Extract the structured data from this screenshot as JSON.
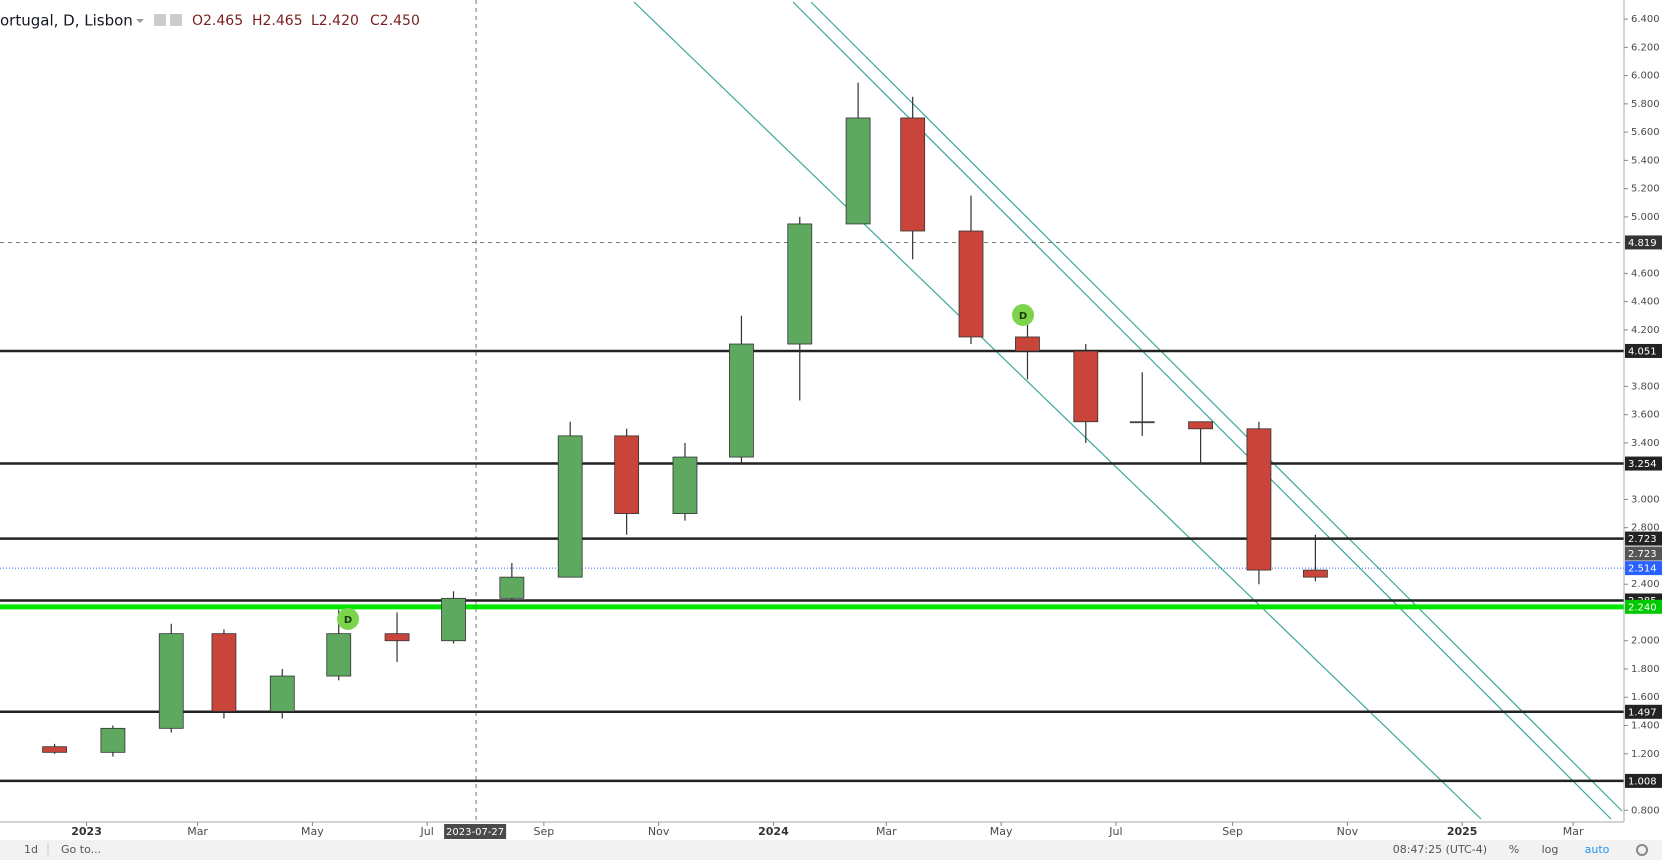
{
  "header": {
    "symbol": "ortugal, D, Lisbon",
    "ohlc": [
      "O2.465",
      "H2.465",
      "L2.420",
      "C2.450"
    ]
  },
  "dividends": [
    "D",
    "D"
  ],
  "toolbar": {
    "left": [
      "1d",
      "Go to..."
    ],
    "right": [
      "08:47:25 (UTC-4)",
      "%",
      "log",
      "auto"
    ]
  },
  "chart_data": {
    "type": "candlestick",
    "x": [
      "2022-12",
      "2023-01",
      "2023-02",
      "2023-03",
      "2023-04",
      "2023-05",
      "2023-06",
      "2023-07",
      "2023-08",
      "2023-09",
      "2023-10",
      "2023-11",
      "2023-12",
      "2024-01",
      "2024-02",
      "2024-03",
      "2024-04",
      "2024-05",
      "2024-06",
      "2024-07",
      "2024-08",
      "2024-09",
      "2024-10"
    ],
    "open": [
      1.25,
      1.21,
      1.38,
      2.05,
      1.5,
      1.75,
      2.05,
      2.0,
      2.3,
      2.45,
      3.45,
      2.9,
      3.3,
      4.1,
      4.95,
      5.7,
      4.9,
      4.15,
      4.05,
      3.55,
      3.55,
      3.5,
      2.5
    ],
    "high": [
      1.27,
      1.4,
      2.12,
      2.08,
      1.8,
      2.22,
      2.2,
      2.35,
      2.55,
      3.55,
      3.5,
      3.4,
      4.3,
      5.0,
      5.95,
      5.85,
      5.15,
      4.25,
      4.1,
      3.9,
      3.55,
      3.55,
      2.75
    ],
    "low": [
      1.2,
      1.18,
      1.35,
      1.45,
      1.45,
      1.72,
      1.85,
      1.98,
      2.28,
      2.45,
      2.75,
      2.85,
      3.25,
      3.7,
      4.95,
      4.7,
      4.1,
      3.85,
      3.4,
      3.45,
      3.25,
      2.4,
      2.42
    ],
    "close": [
      1.21,
      1.38,
      2.05,
      1.5,
      1.75,
      2.05,
      2.0,
      2.3,
      2.45,
      3.45,
      2.9,
      3.3,
      4.1,
      4.95,
      5.7,
      4.9,
      4.15,
      4.05,
      3.55,
      3.55,
      3.5,
      2.5,
      2.45
    ],
    "colors": {
      "up": "#5ea85f",
      "down": "#c9443a",
      "wick": "#333333"
    },
    "xlim": [
      "2022-11-16",
      "2025-03-28"
    ],
    "xticks": [
      {
        "value": "2023-01",
        "label": "2023"
      },
      {
        "value": "2023-03",
        "label": "Mar"
      },
      {
        "value": "2023-05",
        "label": "May"
      },
      {
        "value": "2023-07",
        "label": "Jul"
      },
      {
        "value": "2023-09",
        "label": "Sep"
      },
      {
        "value": "2023-11",
        "label": "Nov"
      },
      {
        "value": "2024-01",
        "label": "2024"
      },
      {
        "value": "2024-03",
        "label": "Mar"
      },
      {
        "value": "2024-05",
        "label": "May"
      },
      {
        "value": "2024-07",
        "label": "Jul"
      },
      {
        "value": "2024-09",
        "label": "Sep"
      },
      {
        "value": "2024-11",
        "label": "Nov"
      },
      {
        "value": "2025-01",
        "label": "2025"
      },
      {
        "value": "2025-03",
        "label": "Mar"
      }
    ],
    "ylim": [
      0.717,
      6.535
    ],
    "yticks": [
      {
        "value": 0.8,
        "label": "0.800"
      },
      {
        "value": 1.2,
        "label": "1.200"
      },
      {
        "value": 1.4,
        "label": "1.400"
      },
      {
        "value": 1.6,
        "label": "1.600"
      },
      {
        "value": 1.8,
        "label": "1.800"
      },
      {
        "value": 2,
        "label": "2.000"
      },
      {
        "value": 2.4,
        "label": "2.400"
      },
      {
        "value": 2.8,
        "label": "2.800"
      },
      {
        "value": 3,
        "label": "3.000"
      },
      {
        "value": 3.4,
        "label": "3.400"
      },
      {
        "value": 3.6,
        "label": "3.600"
      },
      {
        "value": 3.8,
        "label": "3.800"
      },
      {
        "value": 4.2,
        "label": "4.200"
      },
      {
        "value": 4.4,
        "label": "4.400"
      },
      {
        "value": 4.6,
        "label": "4.600"
      },
      {
        "value": 5,
        "label": "5.000"
      },
      {
        "value": 5.2,
        "label": "5.200"
      },
      {
        "value": 5.4,
        "label": "5.400"
      },
      {
        "value": 5.6,
        "label": "5.600"
      },
      {
        "value": 5.8,
        "label": "5.800"
      },
      {
        "value": 6,
        "label": "6.000"
      },
      {
        "value": 6.2,
        "label": "6.200"
      },
      {
        "value": 6.4,
        "label": "6.400"
      }
    ],
    "grid": false,
    "levels": [
      {
        "value": 4.051,
        "label": "4.051",
        "color": "#222222",
        "width": 2.5,
        "line": true,
        "badge": "#222222"
      },
      {
        "value": 3.254,
        "label": "3.254",
        "color": "#222222",
        "width": 2.5,
        "line": true,
        "badge": "#222222"
      },
      {
        "value": 2.723,
        "label": "2.723",
        "color": "#222222",
        "width": 2.5,
        "line": true,
        "badge": "#222222"
      },
      {
        "value": 2.723,
        "label": "2.723",
        "color": "#555555",
        "width": 0,
        "line": false,
        "badge": "#555555"
      },
      {
        "value": 2.514,
        "label": "2.514",
        "color": "#2962ff",
        "width": 1,
        "line": true,
        "dash": "1 2",
        "badge": "#2962ff"
      },
      {
        "value": 2.285,
        "label": "2.285",
        "color": "#222222",
        "width": 2.5,
        "line": true,
        "badge": "#222222"
      },
      {
        "value": 2.24,
        "label": "2.240",
        "color": "#00e600",
        "width": 5,
        "line": true,
        "badge": "#00c800"
      },
      {
        "value": 1.497,
        "label": "1.497",
        "color": "#222222",
        "width": 2.5,
        "line": true,
        "badge": "#222222"
      },
      {
        "value": 1.008,
        "label": "1.008",
        "color": "#222222",
        "width": 2.5,
        "line": true,
        "badge": "#222222"
      }
    ],
    "crosshair": {
      "x": "2023-07-27",
      "y": 4.819
    }
  }
}
